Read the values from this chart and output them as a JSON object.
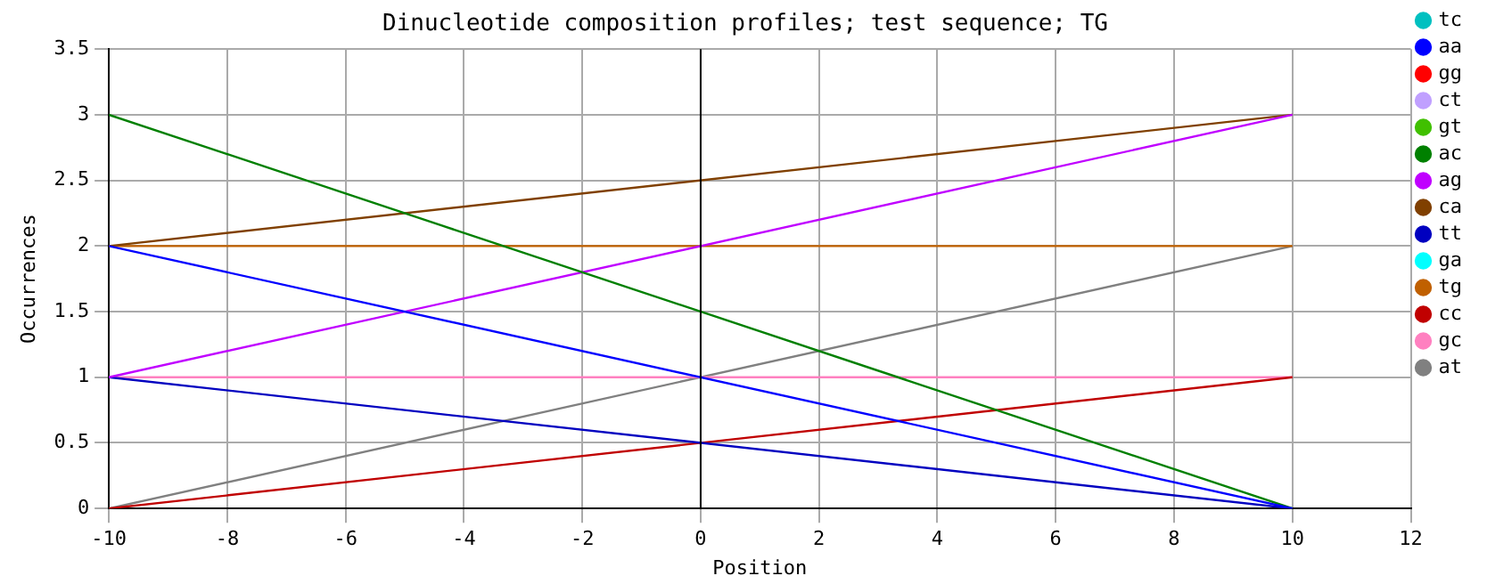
{
  "chart_data": {
    "type": "line",
    "title": "Dinucleotide composition profiles; test sequence; TG",
    "xlabel": "Position",
    "ylabel": "Occurrences",
    "x": [
      -10,
      10
    ],
    "series": [
      {
        "name": "tc",
        "color": "#00c0c0",
        "values": [
          null,
          null
        ]
      },
      {
        "name": "aa",
        "color": "#0000ff",
        "values": [
          2,
          0
        ]
      },
      {
        "name": "gg",
        "color": "#ff0000",
        "values": [
          null,
          null
        ]
      },
      {
        "name": "ct",
        "color": "#c0a0ff",
        "values": [
          null,
          null
        ]
      },
      {
        "name": "gt",
        "color": "#40c000",
        "values": [
          null,
          null
        ]
      },
      {
        "name": "ac",
        "color": "#008000",
        "values": [
          3,
          0
        ]
      },
      {
        "name": "ag",
        "color": "#c000ff",
        "values": [
          1,
          3
        ]
      },
      {
        "name": "ca",
        "color": "#804000",
        "values": [
          2,
          3
        ]
      },
      {
        "name": "tt",
        "color": "#0000c0",
        "values": [
          1,
          0
        ]
      },
      {
        "name": "ga",
        "color": "#00ffff",
        "values": [
          null,
          null
        ]
      },
      {
        "name": "tg",
        "color": "#c06000",
        "values": [
          2,
          2
        ]
      },
      {
        "name": "cc",
        "color": "#c00000",
        "values": [
          0,
          1
        ]
      },
      {
        "name": "gc",
        "color": "#ff80c0",
        "values": [
          1,
          1
        ]
      },
      {
        "name": "at",
        "color": "#808080",
        "values": [
          0,
          2
        ]
      }
    ],
    "xlim": [
      -10,
      12
    ],
    "xticks": [
      -10,
      -8,
      -6,
      -4,
      -2,
      0,
      2,
      4,
      6,
      8,
      10,
      12
    ],
    "ylim": [
      0,
      3.5
    ],
    "yticks": [
      0,
      0.5,
      1,
      1.5,
      2,
      2.5,
      3,
      3.5
    ],
    "ref_lines": [
      {
        "axis": "x",
        "value": 0,
        "color": "#000000"
      }
    ],
    "grid": true,
    "legend": "right",
    "marker": "none",
    "line_style": "solid"
  }
}
